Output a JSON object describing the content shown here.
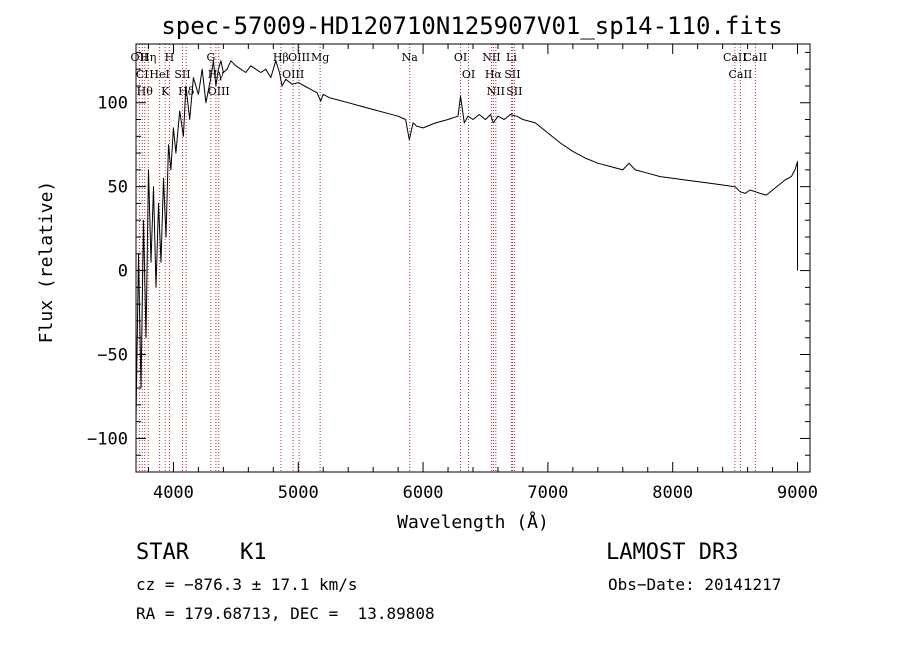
{
  "chart_data": {
    "type": "line",
    "title": "spec-57009-HD120710N125907V01_sp14-110.fits",
    "xlabel": "Wavelength (Å)",
    "ylabel": "Flux (relative)",
    "xlim": [
      3700,
      9100
    ],
    "ylim": [
      -120,
      135
    ],
    "x_ticks": [
      4000,
      5000,
      6000,
      7000,
      8000,
      9000
    ],
    "y_ticks": [
      -100,
      -50,
      0,
      50,
      100
    ],
    "x_tick_labels": [
      "4000",
      "5000",
      "6000",
      "7000",
      "8000",
      "9000"
    ],
    "y_tick_labels": [
      "−100",
      "−50",
      "0",
      "50",
      "100"
    ],
    "grid": false,
    "series": [
      {
        "name": "flux",
        "x": [
          3700,
          3720,
          3740,
          3760,
          3780,
          3800,
          3820,
          3840,
          3860,
          3880,
          3900,
          3920,
          3940,
          3960,
          3980,
          4000,
          4020,
          4050,
          4080,
          4100,
          4130,
          4160,
          4200,
          4230,
          4260,
          4300,
          4320,
          4340,
          4360,
          4380,
          4400,
          4430,
          4460,
          4500,
          4540,
          4580,
          4620,
          4660,
          4700,
          4740,
          4780,
          4820,
          4850,
          4870,
          4900,
          4950,
          5000,
          5050,
          5100,
          5150,
          5180,
          5200,
          5250,
          5300,
          5400,
          5500,
          5600,
          5700,
          5800,
          5860,
          5890,
          5920,
          5950,
          6000,
          6100,
          6200,
          6280,
          6300,
          6330,
          6360,
          6400,
          6450,
          6500,
          6540,
          6563,
          6600,
          6650,
          6700,
          6750,
          6800,
          6900,
          7000,
          7100,
          7200,
          7300,
          7400,
          7500,
          7600,
          7650,
          7700,
          7800,
          7900,
          8000,
          8100,
          8200,
          8300,
          8400,
          8500,
          8540,
          8580,
          8620,
          8660,
          8700,
          8750,
          8800,
          8850,
          8900,
          8950,
          8980,
          9000,
          9000
        ],
        "y": [
          -90,
          10,
          -70,
          30,
          -40,
          60,
          5,
          50,
          -10,
          40,
          5,
          55,
          20,
          75,
          60,
          85,
          70,
          95,
          80,
          110,
          90,
          115,
          105,
          120,
          100,
          115,
          125,
          110,
          120,
          125,
          118,
          120,
          125,
          122,
          120,
          118,
          122,
          120,
          118,
          120,
          115,
          125,
          118,
          110,
          114,
          111,
          112,
          110,
          108,
          106,
          101,
          105,
          103,
          102,
          100,
          98,
          96,
          94,
          92,
          90,
          78,
          88,
          86,
          85,
          88,
          90,
          92,
          104,
          88,
          92,
          90,
          93,
          90,
          93,
          88,
          92,
          90,
          93,
          92,
          90,
          88,
          82,
          76,
          71,
          67,
          64,
          62,
          60,
          64,
          60,
          58,
          56,
          55,
          54,
          53,
          52,
          51,
          50,
          47,
          46,
          48,
          47,
          46,
          45,
          48,
          51,
          54,
          56,
          60,
          65,
          0
        ]
      }
    ],
    "lines": [
      {
        "wl": 3727,
        "label": "OII"
      },
      {
        "wl": 3750,
        "label": "CI"
      },
      {
        "wl": 3770,
        "label": "Hθ"
      },
      {
        "wl": 3798,
        "label": "Hη"
      },
      {
        "wl": 3889,
        "label": "HeI"
      },
      {
        "wl": 3934,
        "label": "K"
      },
      {
        "wl": 3968,
        "label": "H"
      },
      {
        "wl": 4072,
        "label": "SII"
      },
      {
        "wl": 4102,
        "label": "Hδ"
      },
      {
        "wl": 4300,
        "label": "G"
      },
      {
        "wl": 4340,
        "label": "Hγ"
      },
      {
        "wl": 4363,
        "label": "OIII"
      },
      {
        "wl": 4861,
        "label": "Hβ"
      },
      {
        "wl": 4959,
        "label": "OIII"
      },
      {
        "wl": 5007,
        "label": "OIII"
      },
      {
        "wl": 5175,
        "label": "Mg"
      },
      {
        "wl": 5893,
        "label": "Na"
      },
      {
        "wl": 6300,
        "label": "OI"
      },
      {
        "wl": 6364,
        "label": "OI"
      },
      {
        "wl": 6548,
        "label": "NII"
      },
      {
        "wl": 6563,
        "label": "Hα"
      },
      {
        "wl": 6583,
        "label": "NII"
      },
      {
        "wl": 6708,
        "label": "Li"
      },
      {
        "wl": 6716,
        "label": "SII"
      },
      {
        "wl": 6731,
        "label": "SII"
      },
      {
        "wl": 8498,
        "label": "CaII"
      },
      {
        "wl": 8542,
        "label": "CaII"
      },
      {
        "wl": 8662,
        "label": "CaII"
      }
    ]
  },
  "info": {
    "obj_class": "STAR",
    "subclass": "K1",
    "survey": "LAMOST DR3",
    "cz": "cz = −876.3 ± 17.1 km/s",
    "obs_date": "Obs−Date: 20141217",
    "coords": "RA = 179.68713, DEC =  13.89808"
  },
  "colors": {
    "spectrum": "#000000",
    "line_markers": "#b03030"
  }
}
